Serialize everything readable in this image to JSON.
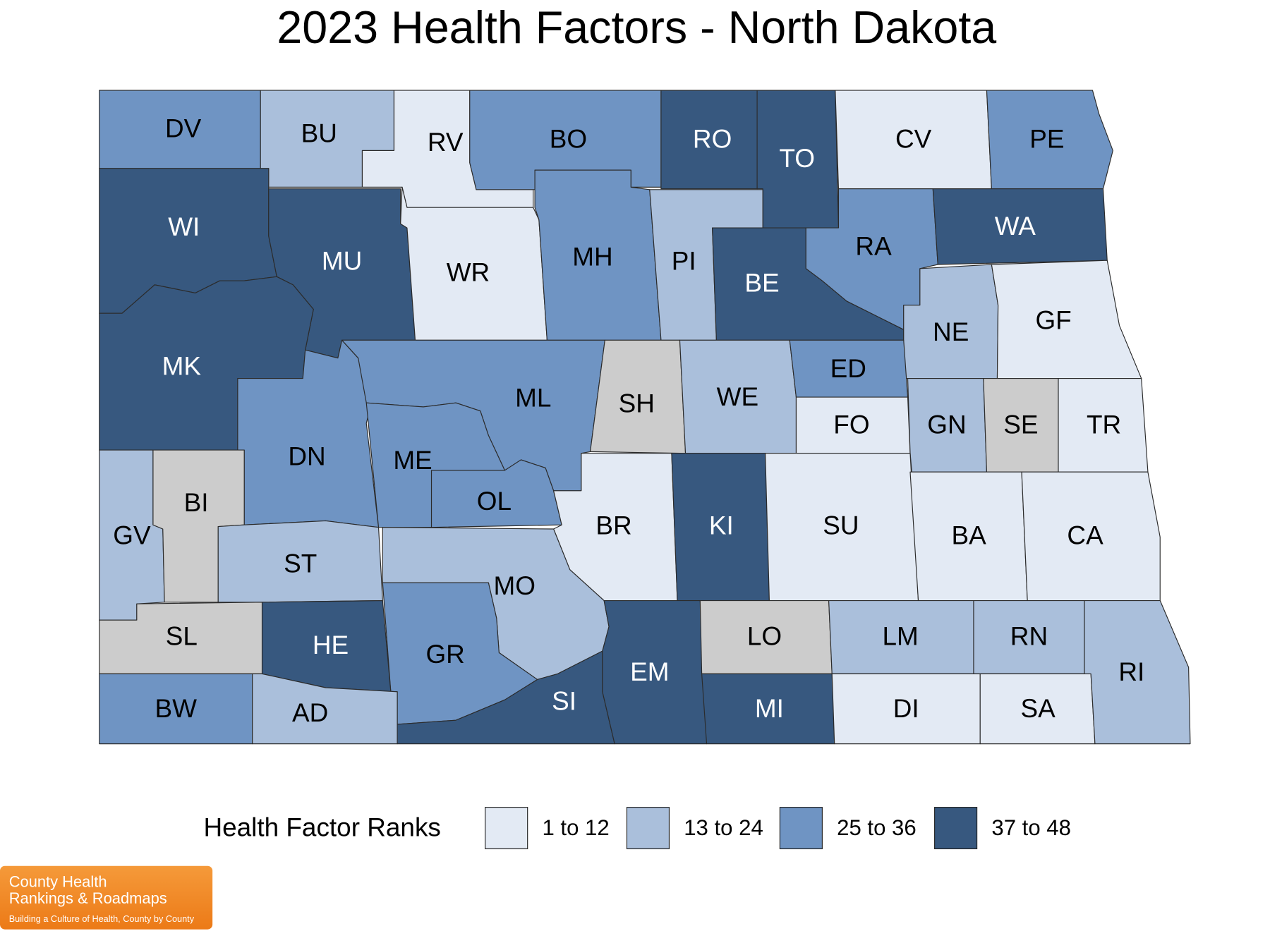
{
  "title": "2023 Health Factors - North Dakota",
  "legend": {
    "title": "Health Factor Ranks",
    "items": [
      {
        "label": "1 to 12",
        "color": "#e3eaf4"
      },
      {
        "label": "13 to 24",
        "color": "#aabfdb"
      },
      {
        "label": "25 to 36",
        "color": "#6f94c3"
      },
      {
        "label": "37 to 48",
        "color": "#37587f"
      }
    ]
  },
  "no_data_color": "#cccccc",
  "counties": [
    {
      "label": "DV",
      "category": "25 to 36"
    },
    {
      "label": "BU",
      "category": "13 to 24"
    },
    {
      "label": "RV",
      "category": "1 to 12"
    },
    {
      "label": "BO",
      "category": "25 to 36"
    },
    {
      "label": "RO",
      "category": "37 to 48"
    },
    {
      "label": "TO",
      "category": "37 to 48"
    },
    {
      "label": "CV",
      "category": "1 to 12"
    },
    {
      "label": "PE",
      "category": "25 to 36"
    },
    {
      "label": "WI",
      "category": "37 to 48"
    },
    {
      "label": "MU",
      "category": "37 to 48"
    },
    {
      "label": "WR",
      "category": "1 to 12"
    },
    {
      "label": "MH",
      "category": "25 to 36"
    },
    {
      "label": "PI",
      "category": "13 to 24"
    },
    {
      "label": "BE",
      "category": "37 to 48"
    },
    {
      "label": "RA",
      "category": "25 to 36"
    },
    {
      "label": "WA",
      "category": "37 to 48"
    },
    {
      "label": "NE",
      "category": "13 to 24"
    },
    {
      "label": "GF",
      "category": "1 to 12"
    },
    {
      "label": "MK",
      "category": "37 to 48"
    },
    {
      "label": "DN",
      "category": "25 to 36"
    },
    {
      "label": "ML",
      "category": "25 to 36"
    },
    {
      "label": "SH"
    },
    {
      "label": "WE",
      "category": "13 to 24"
    },
    {
      "label": "ED",
      "category": "25 to 36"
    },
    {
      "label": "FO",
      "category": "1 to 12"
    },
    {
      "label": "GN",
      "category": "13 to 24"
    },
    {
      "label": "SE"
    },
    {
      "label": "TR",
      "category": "1 to 12"
    },
    {
      "label": "ME",
      "category": "25 to 36"
    },
    {
      "label": "OL",
      "category": "25 to 36"
    },
    {
      "label": "GV",
      "category": "13 to 24"
    },
    {
      "label": "BI"
    },
    {
      "label": "ST",
      "category": "13 to 24"
    },
    {
      "label": "BR",
      "category": "1 to 12"
    },
    {
      "label": "KI",
      "category": "37 to 48"
    },
    {
      "label": "SU",
      "category": "1 to 12"
    },
    {
      "label": "BA",
      "category": "1 to 12"
    },
    {
      "label": "CA",
      "category": "1 to 12"
    },
    {
      "label": "MO",
      "category": "13 to 24"
    },
    {
      "label": "GR",
      "category": "25 to 36"
    },
    {
      "label": "SL"
    },
    {
      "label": "HE",
      "category": "37 to 48"
    },
    {
      "label": "BW",
      "category": "25 to 36"
    },
    {
      "label": "AD",
      "category": "13 to 24"
    },
    {
      "label": "SI",
      "category": "37 to 48"
    },
    {
      "label": "EM",
      "category": "37 to 48"
    },
    {
      "label": "LO"
    },
    {
      "label": "LM",
      "category": "13 to 24"
    },
    {
      "label": "RN",
      "category": "13 to 24"
    },
    {
      "label": "MI",
      "category": "37 to 48"
    },
    {
      "label": "DI",
      "category": "1 to 12"
    },
    {
      "label": "SA",
      "category": "1 to 12"
    },
    {
      "label": "RI",
      "category": "13 to 24"
    }
  ],
  "logo": {
    "line1": "County Health",
    "line2": "Rankings & Roadmaps",
    "tagline": "Building a Culture of Health, County by County"
  }
}
